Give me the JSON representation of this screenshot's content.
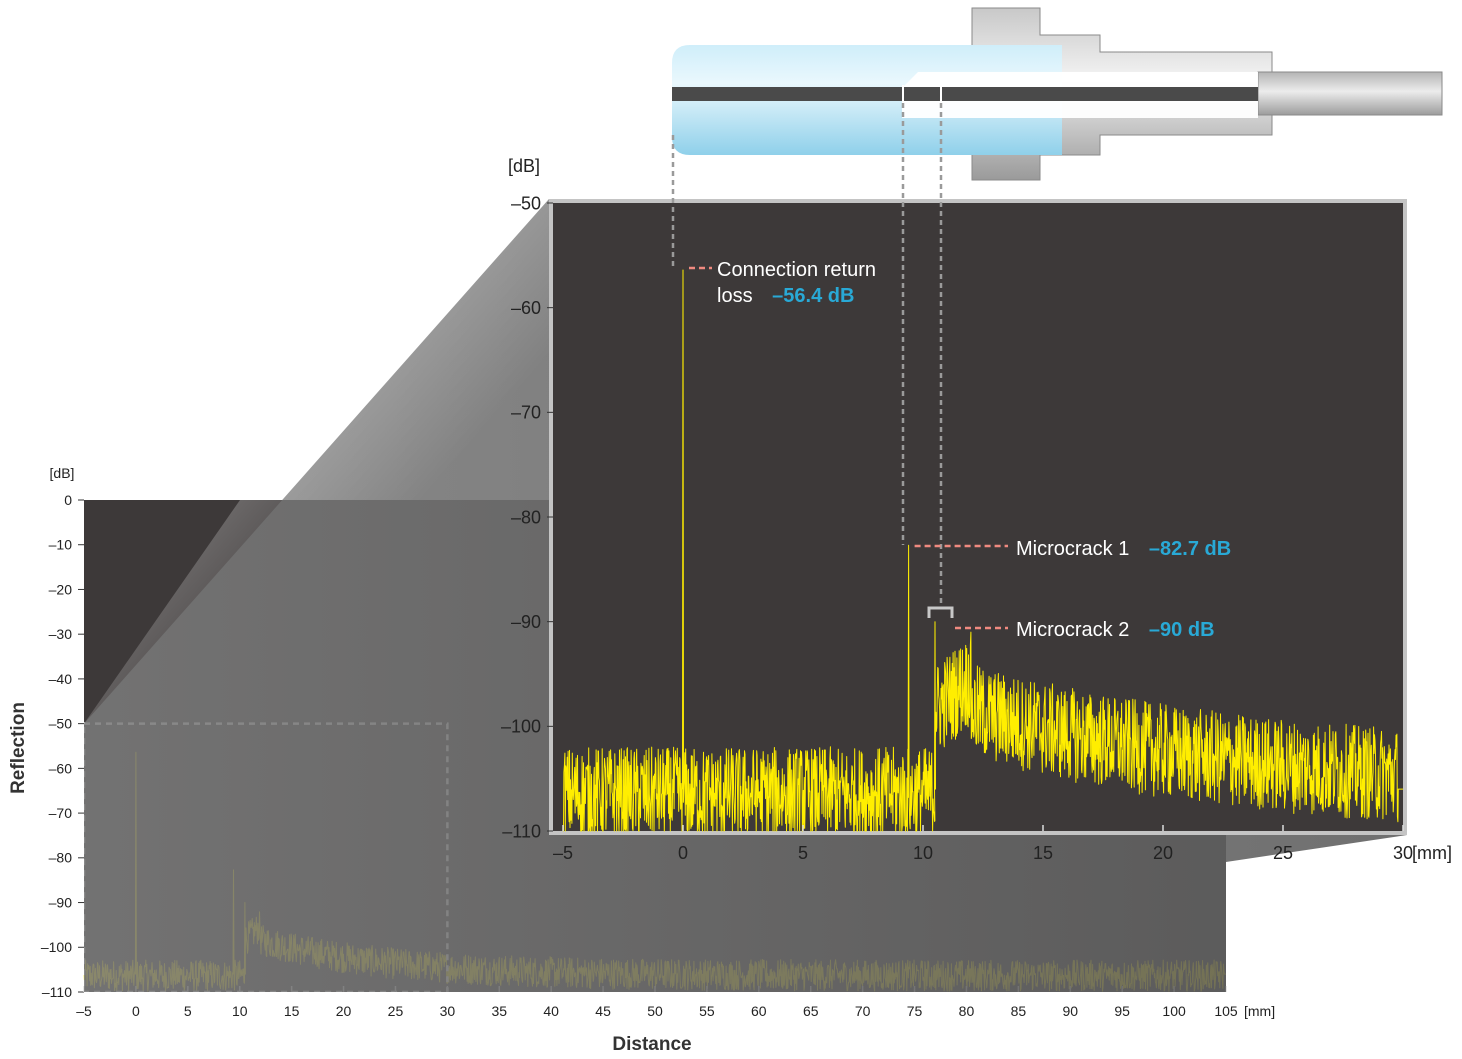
{
  "figure": {
    "y_axis_title": "Reflection",
    "x_axis_title": "Distance"
  },
  "colors": {
    "plot_background": "#3d3939",
    "trace": "#ffee00",
    "zoom_band": "#6e6e6e",
    "annotation_leader": "#f08a80",
    "annotation_value": "#29a9d6",
    "guide_line": "#9a9a9a"
  },
  "chart_data": [
    {
      "id": "overview",
      "type": "line",
      "y_unit_label": "[dB]",
      "x_unit_label": "[mm]",
      "xlim": [
        -5,
        105
      ],
      "ylim": [
        -110,
        0
      ],
      "xticks": [
        -5,
        0,
        5,
        10,
        15,
        20,
        25,
        30,
        35,
        40,
        45,
        50,
        55,
        60,
        65,
        70,
        75,
        80,
        85,
        90,
        95,
        100,
        105
      ],
      "xtick_labels": [
        "–5",
        "0",
        "5",
        "10",
        "15",
        "20",
        "25",
        "30",
        "35",
        "40",
        "45",
        "50",
        "55",
        "60",
        "65",
        "70",
        "75",
        "80",
        "85",
        "90",
        "95",
        "100",
        "105"
      ],
      "yticks": [
        0,
        -10,
        -20,
        -30,
        -40,
        -50,
        -60,
        -70,
        -80,
        -90,
        -100,
        -110
      ],
      "ytick_labels": [
        "0",
        "–10",
        "–20",
        "–30",
        "–40",
        "–50",
        "–60",
        "–70",
        "–80",
        "–90",
        "–100",
        "–110"
      ],
      "zoom_region": {
        "x": [
          -5,
          30
        ],
        "y": [
          -110,
          -50
        ]
      },
      "noise_floor_db": -106,
      "peaks": [
        {
          "x": 0,
          "y": -56.4
        },
        {
          "x": 9.4,
          "y": -82.7
        },
        {
          "x": 10.5,
          "y": -90
        }
      ]
    },
    {
      "id": "detail",
      "type": "line",
      "y_unit_label": "[dB]",
      "x_unit_label": "[mm]",
      "xlim": [
        -5,
        30
      ],
      "ylim": [
        -110,
        -50
      ],
      "xticks": [
        -5,
        0,
        5,
        10,
        15,
        20,
        25,
        30
      ],
      "xtick_labels": [
        "–5",
        "0",
        "5",
        "10",
        "15",
        "20",
        "25",
        "30"
      ],
      "yticks": [
        -50,
        -60,
        -70,
        -80,
        -90,
        -100,
        -110
      ],
      "ytick_labels": [
        "–50",
        "–60",
        "–70",
        "–80",
        "–90",
        "–100",
        "–110"
      ],
      "noise_floor_db": -106,
      "peaks": [
        {
          "x": 0,
          "y": -56.4
        },
        {
          "x": 9.4,
          "y": -82.7
        },
        {
          "x": 10.5,
          "y": -90
        }
      ],
      "annotations": [
        {
          "label_line1": "Connection return",
          "label_line2": "loss",
          "value": "–56.4 dB",
          "x": 0,
          "y": -56.4
        },
        {
          "label": "Microcrack 1",
          "value": "–82.7 dB",
          "x": 9.4,
          "y": -82.7
        },
        {
          "label": "Microcrack 2",
          "value": "–90 dB",
          "x": 10.5,
          "y": -90
        }
      ]
    }
  ]
}
